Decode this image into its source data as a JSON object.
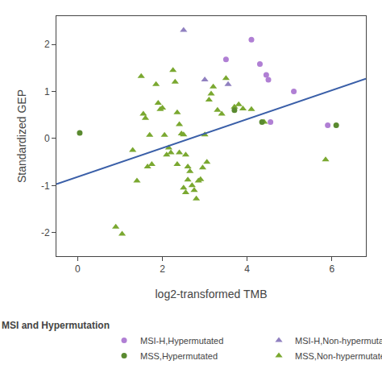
{
  "chart_data": {
    "type": "scatter",
    "xlabel": "log2-transformed TMB",
    "ylabel": "Standardized GEP",
    "legend_title": "MSI and Hypermutation",
    "legend": "bottom",
    "grid": false,
    "xlim": [
      -0.5,
      6.8
    ],
    "ylim": [
      -2.5,
      2.6
    ],
    "xticks": [
      0,
      2,
      4,
      6
    ],
    "yticks": [
      -2,
      -1,
      0,
      1,
      2
    ],
    "series": [
      {
        "name": "MSS,Non-hypermutated",
        "type": "scatter",
        "marker": "triangle",
        "color": "#7aa830",
        "x": [
          0.9,
          1.05,
          1.5,
          1.55,
          1.6,
          1.65,
          1.7,
          1.75,
          1.85,
          1.9,
          1.95,
          2.0,
          2.05,
          2.1,
          2.15,
          2.2,
          2.25,
          2.3,
          2.35,
          2.4,
          2.45,
          2.5,
          2.55,
          2.6,
          2.65,
          2.7,
          2.75,
          2.8,
          2.85,
          2.9,
          2.95,
          3.0,
          3.05,
          3.1,
          3.15,
          3.2,
          3.3,
          3.4,
          3.5,
          4.1,
          4.4,
          5.85,
          1.3,
          1.4,
          2.35,
          2.4,
          2.5,
          2.55,
          2.6,
          3.7,
          3.8,
          3.9
        ],
        "y": [
          -1.88,
          -2.03,
          1.32,
          0.52,
          0.43,
          -0.6,
          0.07,
          -0.55,
          1.15,
          0.75,
          0.62,
          0.65,
          0.07,
          -0.35,
          -0.2,
          -0.3,
          1.45,
          1.2,
          0.55,
          0.3,
          0.1,
          0.08,
          -0.35,
          -0.6,
          -0.7,
          -1.0,
          -1.1,
          -1.28,
          -0.9,
          -0.87,
          -0.62,
          0.08,
          -0.5,
          0.82,
          0.95,
          1.1,
          0.6,
          0.52,
          1.28,
          0.62,
          0.35,
          -0.45,
          -0.25,
          -0.9,
          -0.55,
          -0.3,
          -1.05,
          -1.15,
          -0.88,
          0.67,
          0.72,
          0.63
        ]
      },
      {
        "name": "MSS,Hypermutated",
        "type": "scatter",
        "marker": "circle",
        "color": "#5a8a30",
        "x": [
          0.05,
          3.7,
          4.35,
          6.1
        ],
        "y": [
          0.12,
          0.6,
          0.35,
          0.28
        ]
      },
      {
        "name": "MSI-H,Non-hypermutated",
        "type": "scatter",
        "marker": "triangle",
        "color": "#9080c0",
        "x": [
          2.5,
          3.0,
          3.55
        ],
        "y": [
          2.3,
          1.25,
          1.15
        ]
      },
      {
        "name": "MSI-H,Hypermutated",
        "type": "scatter",
        "marker": "circle",
        "color": "#b07fd4",
        "x": [
          3.5,
          4.1,
          4.3,
          4.45,
          4.5,
          4.55,
          5.1,
          5.9
        ],
        "y": [
          1.68,
          2.1,
          1.58,
          1.35,
          1.25,
          0.35,
          1.0,
          0.28
        ]
      },
      {
        "type": "line",
        "color": "#3a5fa8",
        "x": [
          -0.5,
          6.8
        ],
        "y": [
          -0.97,
          1.27
        ]
      }
    ]
  }
}
